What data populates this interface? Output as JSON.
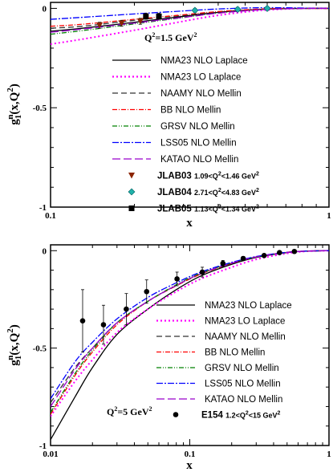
{
  "chart_data": [
    {
      "type": "line",
      "xscale": "log",
      "xlim": [
        0.1,
        1
      ],
      "ylim": [
        -1,
        0.03
      ],
      "xticks": [
        "0.1",
        "1"
      ],
      "yticks": [
        "0",
        "-0.5",
        "-1"
      ],
      "xlabel": "x",
      "ylabel": "g1n(x,Q2)",
      "annotation": "Q2=1.5 GeV2",
      "series": [
        {
          "name": "NMA23 NLO Laplace",
          "color": "#000000",
          "dash": "",
          "x": [
            0.1,
            0.13,
            0.2,
            0.3,
            0.4,
            0.55,
            0.7,
            0.85,
            1.0
          ],
          "y": [
            -0.115,
            -0.1,
            -0.07,
            -0.04,
            -0.02,
            -0.006,
            -0.001,
            0.0,
            0.0
          ]
        },
        {
          "name": "NMA23 LO Laplace",
          "color": "#ff00ff",
          "dash": "2,3",
          "x": [
            0.1,
            0.13,
            0.2,
            0.3,
            0.4,
            0.55,
            0.7,
            0.85,
            1.0
          ],
          "y": [
            -0.18,
            -0.155,
            -0.11,
            -0.065,
            -0.035,
            -0.012,
            -0.003,
            0.0,
            0.0
          ]
        },
        {
          "name": "NAAMY NLO Mellin",
          "color": "#333333",
          "dash": "7,4",
          "x": [
            0.1,
            0.13,
            0.2,
            0.3,
            0.4,
            0.55,
            0.7,
            0.85,
            1.0
          ],
          "y": [
            -0.1,
            -0.09,
            -0.06,
            -0.035,
            -0.017,
            -0.005,
            -0.001,
            0.0,
            0.0
          ]
        },
        {
          "name": "BB NLO Mellin",
          "color": "#ff0000",
          "dash": "6,2,1,2",
          "x": [
            0.1,
            0.13,
            0.2,
            0.3,
            0.4,
            0.55,
            0.7,
            0.85,
            1.0
          ],
          "y": [
            -0.09,
            -0.08,
            -0.055,
            -0.032,
            -0.016,
            -0.004,
            0.0,
            0.0,
            0.0
          ]
        },
        {
          "name": "GRSV NLO Mellin",
          "color": "#008000",
          "dash": "6,2,1,2,1,2",
          "x": [
            0.1,
            0.13,
            0.2,
            0.3,
            0.4,
            0.55,
            0.7,
            0.85,
            1.0
          ],
          "y": [
            -0.13,
            -0.112,
            -0.078,
            -0.046,
            -0.024,
            -0.008,
            -0.002,
            0.0,
            0.0
          ]
        },
        {
          "name": "LSS05 NLO Mellin",
          "color": "#0000ff",
          "dash": "8,2,2,2",
          "x": [
            0.1,
            0.13,
            0.2,
            0.3,
            0.4,
            0.55,
            0.7,
            0.85,
            1.0
          ],
          "y": [
            -0.055,
            -0.045,
            -0.028,
            -0.013,
            -0.003,
            0.003,
            0.003,
            0.001,
            0.0
          ]
        },
        {
          "name": "KATAO NLO Mellin",
          "color": "#9900cc",
          "dash": "10,4",
          "x": [
            0.1,
            0.13,
            0.2,
            0.3,
            0.4,
            0.55,
            0.7,
            0.85,
            1.0
          ],
          "y": [
            -0.12,
            -0.104,
            -0.074,
            -0.045,
            -0.024,
            -0.008,
            -0.002,
            0.0,
            0.0
          ]
        }
      ],
      "points": [
        {
          "name": "JLAB03",
          "range": "1.09<Q2<1.46 GeV2",
          "marker": "triangle-down",
          "color": "#8b2500",
          "x": [
            0.15,
            0.18,
            0.21
          ],
          "y": [
            -0.085,
            -0.075,
            -0.065
          ],
          "err": [
            0.015,
            0.015,
            0.015
          ]
        },
        {
          "name": "JLAB04",
          "range": "2.71<Q2<4.83 GeV2",
          "marker": "diamond",
          "color": "#20b2aa",
          "x": [
            0.33,
            0.47,
            0.6
          ],
          "y": [
            -0.01,
            -0.005,
            0.0
          ],
          "err": [
            0.01,
            0.01,
            0.01
          ]
        },
        {
          "name": "JLAB05",
          "range": "1.13<Q2<1.34 GeV2",
          "marker": "square",
          "color": "#000000",
          "x": [
            0.22,
            0.245
          ],
          "y": [
            -0.04,
            -0.04
          ],
          "err": [
            0.015,
            0.015
          ]
        }
      ]
    },
    {
      "type": "line",
      "xscale": "log",
      "xlim": [
        0.01,
        1
      ],
      "ylim": [
        -1,
        0.03
      ],
      "xticks": [
        "0.01",
        "0.1",
        "1"
      ],
      "yticks": [
        "0",
        "-0.5",
        "-1"
      ],
      "xlabel": "x",
      "ylabel": "g1n(x,Q2)",
      "annotation": "Q2=5 GeV2",
      "series": [
        {
          "name": "NMA23 NLO Laplace",
          "color": "#000000",
          "dash": "",
          "x": [
            0.01,
            0.015,
            0.02,
            0.03,
            0.05,
            0.08,
            0.12,
            0.2,
            0.3,
            0.5,
            0.7,
            1.0
          ],
          "y": [
            -0.97,
            -0.75,
            -0.6,
            -0.43,
            -0.3,
            -0.2,
            -0.13,
            -0.07,
            -0.035,
            -0.01,
            -0.002,
            0.0
          ]
        },
        {
          "name": "NMA23 LO Laplace",
          "color": "#ff00ff",
          "dash": "2,3",
          "x": [
            0.01,
            0.015,
            0.02,
            0.03,
            0.05,
            0.08,
            0.12,
            0.2,
            0.3,
            0.5,
            0.7,
            1.0
          ],
          "y": [
            -0.85,
            -0.67,
            -0.56,
            -0.42,
            -0.3,
            -0.21,
            -0.145,
            -0.085,
            -0.045,
            -0.014,
            -0.003,
            0.0
          ]
        },
        {
          "name": "NAAMY NLO Mellin",
          "color": "#333333",
          "dash": "7,4",
          "x": [
            0.01,
            0.015,
            0.02,
            0.03,
            0.05,
            0.08,
            0.12,
            0.2,
            0.3,
            0.5,
            0.7,
            1.0
          ],
          "y": [
            -0.78,
            -0.6,
            -0.5,
            -0.37,
            -0.26,
            -0.18,
            -0.12,
            -0.065,
            -0.033,
            -0.009,
            -0.002,
            0.0
          ]
        },
        {
          "name": "BB NLO Mellin",
          "color": "#ff0000",
          "dash": "6,2,1,2",
          "x": [
            0.01,
            0.015,
            0.02,
            0.03,
            0.05,
            0.08,
            0.12,
            0.2,
            0.3,
            0.5,
            0.7,
            1.0
          ],
          "y": [
            -0.84,
            -0.64,
            -0.52,
            -0.38,
            -0.26,
            -0.18,
            -0.12,
            -0.065,
            -0.032,
            -0.008,
            -0.002,
            0.0
          ]
        },
        {
          "name": "GRSV NLO Mellin",
          "color": "#008000",
          "dash": "6,2,1,2,1,2",
          "x": [
            0.01,
            0.015,
            0.02,
            0.03,
            0.05,
            0.08,
            0.12,
            0.2,
            0.3,
            0.5,
            0.7,
            1.0
          ],
          "y": [
            -0.83,
            -0.63,
            -0.51,
            -0.37,
            -0.26,
            -0.175,
            -0.115,
            -0.063,
            -0.032,
            -0.009,
            -0.002,
            0.0
          ]
        },
        {
          "name": "LSS05 NLO Mellin",
          "color": "#0000ff",
          "dash": "8,2,2,2",
          "x": [
            0.01,
            0.015,
            0.02,
            0.03,
            0.05,
            0.08,
            0.12,
            0.2,
            0.3,
            0.5,
            0.7,
            1.0
          ],
          "y": [
            -0.76,
            -0.57,
            -0.47,
            -0.35,
            -0.24,
            -0.165,
            -0.11,
            -0.06,
            -0.03,
            -0.008,
            -0.002,
            0.0
          ]
        },
        {
          "name": "KATAO NLO Mellin",
          "color": "#9900cc",
          "dash": "10,4",
          "x": [
            0.01,
            0.015,
            0.02,
            0.03,
            0.05,
            0.08,
            0.12,
            0.2,
            0.3,
            0.5,
            0.7,
            1.0
          ],
          "y": [
            -0.8,
            -0.61,
            -0.5,
            -0.37,
            -0.26,
            -0.178,
            -0.118,
            -0.064,
            -0.032,
            -0.009,
            -0.002,
            0.0
          ]
        }
      ],
      "points": [
        {
          "name": "E154",
          "range": "1.2<Q2<15 GeV2",
          "marker": "circle",
          "color": "#000000",
          "x": [
            0.017,
            0.024,
            0.035,
            0.049,
            0.081,
            0.123,
            0.173,
            0.242,
            0.342,
            0.441,
            0.564
          ],
          "y": [
            -0.36,
            -0.38,
            -0.3,
            -0.21,
            -0.145,
            -0.11,
            -0.065,
            -0.04,
            -0.025,
            -0.01,
            -0.004
          ],
          "err": [
            0.16,
            0.1,
            0.08,
            0.06,
            0.035,
            0.025,
            0.015,
            0.01,
            0.008,
            0.006,
            0.005
          ]
        }
      ]
    }
  ]
}
